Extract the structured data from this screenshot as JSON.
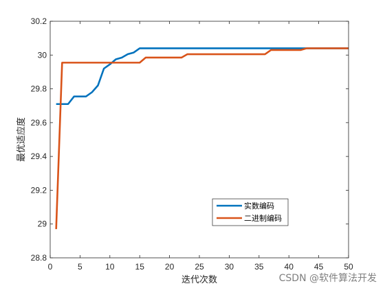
{
  "chart_data": {
    "type": "line",
    "xlabel": "迭代次数",
    "ylabel": "最优适应度",
    "xlim": [
      0,
      50
    ],
    "ylim": [
      28.8,
      30.2
    ],
    "x_ticks": [
      "0",
      "5",
      "10",
      "15",
      "20",
      "25",
      "30",
      "35",
      "40",
      "45",
      "50"
    ],
    "y_ticks": [
      "28.8",
      "29",
      "29.2",
      "29.4",
      "29.6",
      "29.8",
      "30",
      "30.2"
    ],
    "grid": false,
    "legend_position": "lower-right",
    "series": [
      {
        "name": "实数编码",
        "color": "#0072BD",
        "points": [
          [
            1,
            29.71
          ],
          [
            2,
            29.71
          ],
          [
            3,
            29.71
          ],
          [
            4,
            29.755
          ],
          [
            5,
            29.755
          ],
          [
            6,
            29.755
          ],
          [
            7,
            29.78
          ],
          [
            8,
            29.82
          ],
          [
            9,
            29.92
          ],
          [
            10,
            29.945
          ],
          [
            11,
            29.975
          ],
          [
            12,
            29.985
          ],
          [
            13,
            30.005
          ],
          [
            14,
            30.015
          ],
          [
            15,
            30.04
          ],
          [
            20,
            30.04
          ],
          [
            25,
            30.04
          ],
          [
            30,
            30.04
          ],
          [
            35,
            30.04
          ],
          [
            40,
            30.04
          ],
          [
            42,
            30.04
          ],
          [
            45,
            30.04
          ],
          [
            50,
            30.04
          ]
        ]
      },
      {
        "name": "二进制编码",
        "color": "#D95319",
        "points": [
          [
            1,
            28.97
          ],
          [
            2,
            29.955
          ],
          [
            5,
            29.955
          ],
          [
            10,
            29.955
          ],
          [
            15,
            29.955
          ],
          [
            16,
            29.985
          ],
          [
            20,
            29.985
          ],
          [
            22,
            29.985
          ],
          [
            23,
            30.005
          ],
          [
            28,
            30.005
          ],
          [
            33,
            30.005
          ],
          [
            36,
            30.005
          ],
          [
            37,
            30.03
          ],
          [
            40,
            30.03
          ],
          [
            42,
            30.03
          ],
          [
            43,
            30.04
          ],
          [
            50,
            30.04
          ]
        ]
      }
    ]
  },
  "watermark": "CSDN @软件算法开发"
}
